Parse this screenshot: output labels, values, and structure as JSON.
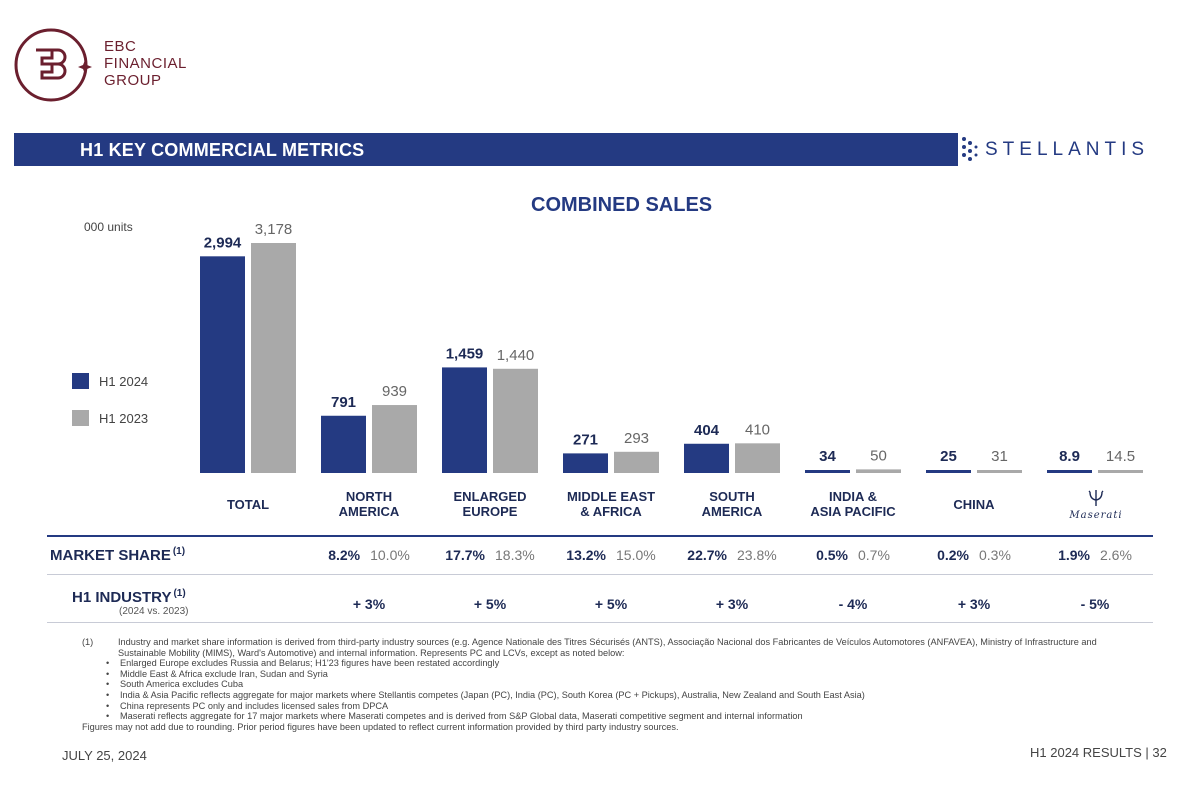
{
  "brand": {
    "ebc_line1": "EBC",
    "ebc_line2": "FINANCIAL",
    "ebc_line3": "GROUP",
    "stellantis": "STELLANTIS"
  },
  "header": {
    "title": "H1 KEY COMMERCIAL METRICS"
  },
  "legend": [
    {
      "label": "H1 2024",
      "color": "#243a82"
    },
    {
      "label": "H1 2023",
      "color": "#a9a9a9"
    }
  ],
  "chart_data": {
    "type": "bar",
    "title": "COMBINED SALES",
    "ylabel": "000 units",
    "categories": [
      [
        "TOTAL"
      ],
      [
        "NORTH",
        "AMERICA"
      ],
      [
        "ENLARGED",
        "EUROPE"
      ],
      [
        "MIDDLE EAST",
        "& AFRICA"
      ],
      [
        "SOUTH",
        "AMERICA"
      ],
      [
        "INDIA &",
        "ASIA PACIFIC"
      ],
      [
        "CHINA"
      ],
      [
        "Maserati"
      ]
    ],
    "series": [
      {
        "name": "H1 2024",
        "color": "#243a82",
        "values": [
          2994,
          791,
          1459,
          271,
          404,
          34,
          25,
          8.9
        ],
        "labels": [
          "2,994",
          "791",
          "1,459",
          "271",
          "404",
          "34",
          "25",
          "8.9"
        ]
      },
      {
        "name": "H1 2023",
        "color": "#a9a9a9",
        "values": [
          3178,
          939,
          1440,
          293,
          410,
          50,
          31,
          14.5
        ],
        "labels": [
          "3,178",
          "939",
          "1,440",
          "293",
          "410",
          "50",
          "31",
          "14.5"
        ]
      }
    ],
    "ylim": [
      0,
      3178
    ]
  },
  "market_share": {
    "label": "MARKET SHARE",
    "note": "(1)",
    "values": [
      null,
      [
        "8.2%",
        "10.0%"
      ],
      [
        "17.7%",
        "18.3%"
      ],
      [
        "13.2%",
        "15.0%"
      ],
      [
        "22.7%",
        "23.8%"
      ],
      [
        "0.5%",
        "0.7%"
      ],
      [
        "0.2%",
        "0.3%"
      ],
      [
        "1.9%",
        "2.6%"
      ]
    ]
  },
  "industry": {
    "label": "H1 INDUSTRY",
    "note": "(1)",
    "sub": "(2024 vs. 2023)",
    "values": [
      null,
      "+ 3%",
      "+ 5%",
      "+ 5%",
      "+ 3%",
      "- 4%",
      "+ 3%",
      "- 5%"
    ]
  },
  "footnotes": {
    "num": "(1)",
    "main": "Industry and market share information is derived from third-party industry sources (e.g. Agence Nationale des Titres Sécurisés (ANTS), Associação Nacional dos Fabricantes de Veículos Automotores (ANFAVEA), Ministry of Infrastructure and Sustainable Mobility (MIMS), Ward's Automotive) and internal information.  Represents PC and LCVs, except as noted below:",
    "bullets": [
      "Enlarged Europe excludes Russia and Belarus; H1'23 figures have been restated accordingly",
      "Middle East & Africa exclude Iran, Sudan and Syria",
      "South America excludes Cuba",
      "India & Asia Pacific reflects aggregate for major markets where Stellantis competes (Japan (PC), India (PC), South Korea (PC + Pickups), Australia, New Zealand and South East Asia)",
      "China represents PC only and includes licensed sales from DPCA",
      "Maserati reflects aggregate for 17 major markets where Maserati competes and is derived from S&P Global data, Maserati competitive segment and internal information"
    ],
    "closing": "Figures may not add due to rounding.  Prior period figures have been updated to reflect current information provided by third party industry sources."
  },
  "footer": {
    "date": "JULY 25, 2024",
    "page": "H1 2024 RESULTS  |  32"
  }
}
